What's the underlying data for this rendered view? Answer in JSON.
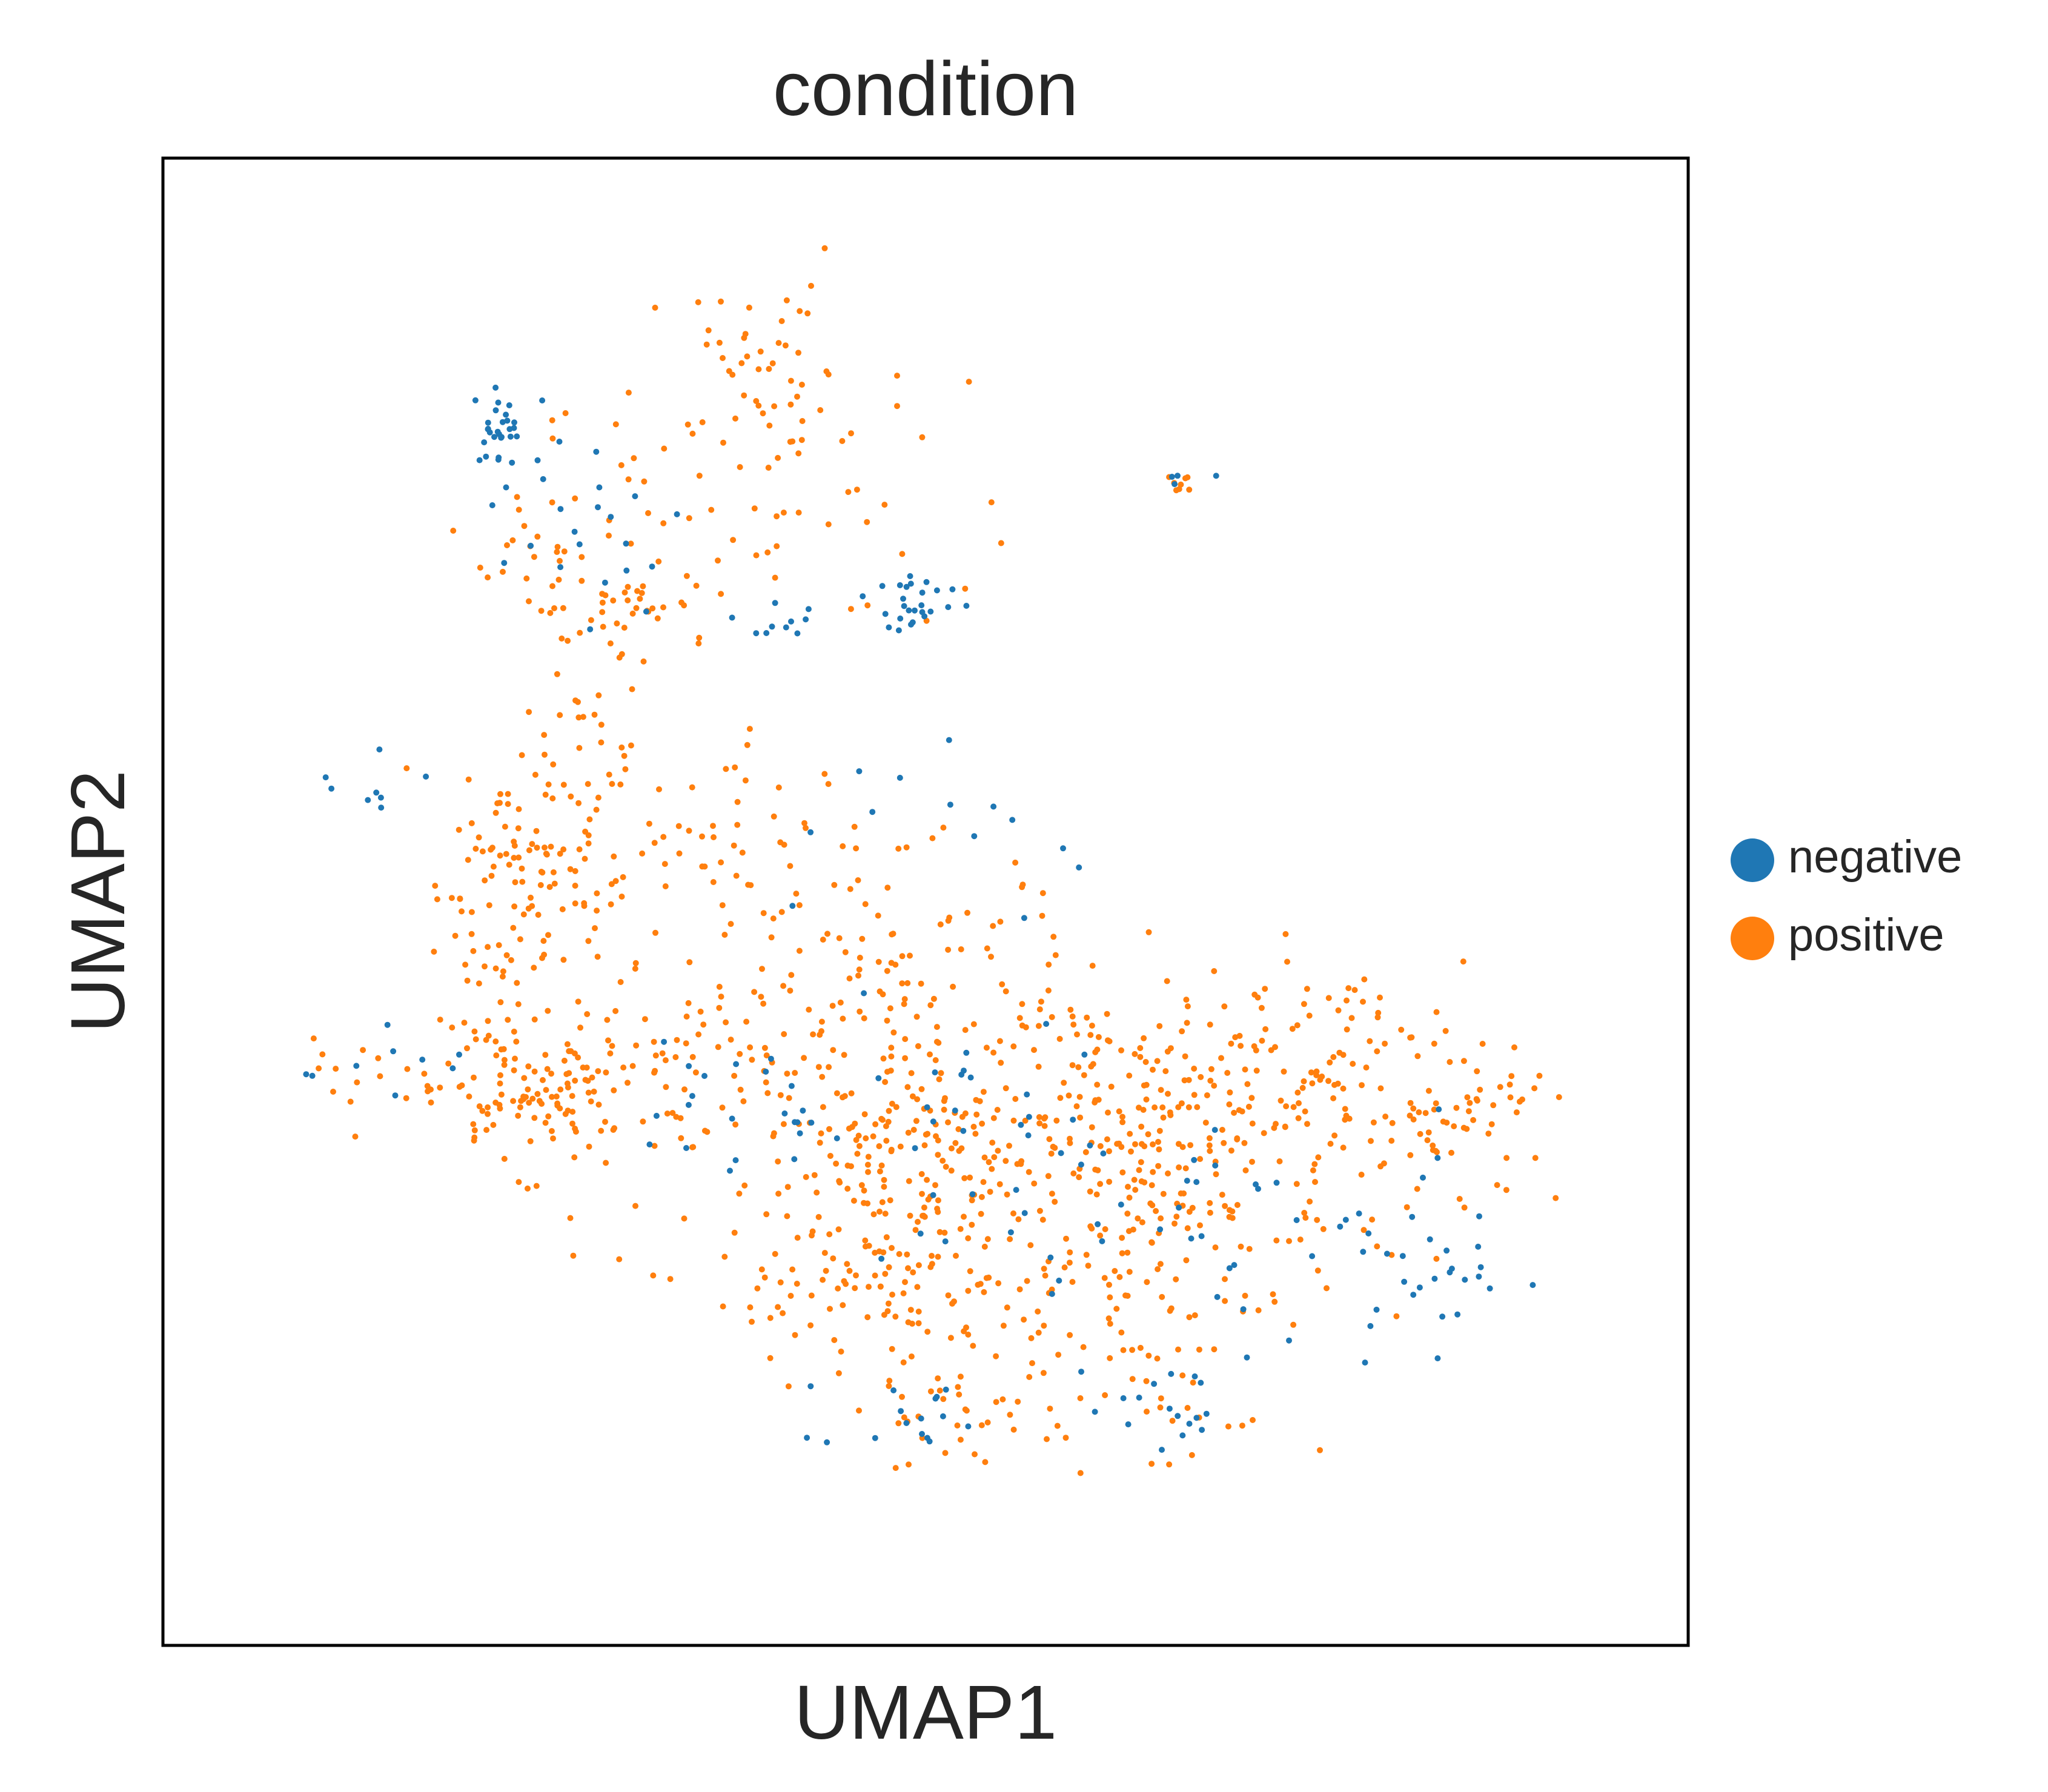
{
  "chart_data": {
    "type": "scatter",
    "title": "condition",
    "xlabel": "UMAP1",
    "ylabel": "UMAP2",
    "xlim": [
      0,
      100
    ],
    "ylim": [
      0,
      100
    ],
    "grid": false,
    "ticks": false,
    "legend_position": "right",
    "series": [
      {
        "name": "negative",
        "color": "#1f77b4",
        "clusters": [
          {
            "cx": 18.8,
            "cy": 86.0,
            "sx": 1.8,
            "sy": 1.5,
            "n": 30
          },
          {
            "cx": 24.5,
            "cy": 78.5,
            "sx": 3.5,
            "sy": 3.5,
            "n": 22
          },
          {
            "cx": 49.0,
            "cy": 73.0,
            "sx": 1.8,
            "sy": 1.2,
            "n": 26
          },
          {
            "cx": 40.5,
            "cy": 71.5,
            "sx": 1.6,
            "sy": 0.8,
            "n": 10
          },
          {
            "cx": 69.5,
            "cy": 82.5,
            "sx": 1.5,
            "sy": 0.6,
            "n": 4
          },
          {
            "cx": 9.0,
            "cy": 59.0,
            "sx": 2.8,
            "sy": 1.5,
            "n": 8
          },
          {
            "cx": 8.5,
            "cy": 37.5,
            "sx": 3.5,
            "sy": 1.2,
            "n": 9
          },
          {
            "cx": 42.0,
            "cy": 35.0,
            "sx": 7.0,
            "sy": 3.5,
            "n": 28
          },
          {
            "cx": 58.0,
            "cy": 30.0,
            "sx": 9.0,
            "sy": 5.0,
            "n": 34
          },
          {
            "cx": 78.0,
            "cy": 22.0,
            "sx": 7.0,
            "sy": 5.0,
            "n": 30
          },
          {
            "cx": 89.0,
            "cy": 21.0,
            "sx": 2.5,
            "sy": 2.0,
            "n": 20
          },
          {
            "cx": 48.0,
            "cy": 10.5,
            "sx": 3.5,
            "sy": 1.5,
            "n": 16
          },
          {
            "cx": 68.0,
            "cy": 11.0,
            "sx": 5.0,
            "sy": 2.0,
            "n": 16
          },
          {
            "cx": 52.0,
            "cy": 55.0,
            "sx": 8.0,
            "sy": 5.0,
            "n": 14
          }
        ]
      },
      {
        "name": "positive",
        "color": "#ff7f0e",
        "clusters": [
          {
            "cx": 38.0,
            "cy": 91.0,
            "sx": 4.5,
            "sy": 3.0,
            "n": 40
          },
          {
            "cx": 37.0,
            "cy": 81.0,
            "sx": 8.0,
            "sy": 4.5,
            "n": 60
          },
          {
            "cx": 22.5,
            "cy": 76.0,
            "sx": 3.0,
            "sy": 2.5,
            "n": 30
          },
          {
            "cx": 29.5,
            "cy": 72.5,
            "sx": 2.5,
            "sy": 2.0,
            "n": 30
          },
          {
            "cx": 25.0,
            "cy": 66.0,
            "sx": 2.0,
            "sy": 3.5,
            "n": 20
          },
          {
            "cx": 69.0,
            "cy": 82.0,
            "sx": 0.6,
            "sy": 0.4,
            "n": 8
          },
          {
            "cx": 19.5,
            "cy": 52.0,
            "sx": 3.0,
            "sy": 5.0,
            "n": 100
          },
          {
            "cx": 29.0,
            "cy": 55.0,
            "sx": 7.0,
            "sy": 3.5,
            "n": 60
          },
          {
            "cx": 20.0,
            "cy": 36.0,
            "sx": 5.0,
            "sy": 3.0,
            "n": 120
          },
          {
            "cx": 32.0,
            "cy": 38.0,
            "sx": 7.0,
            "sy": 5.0,
            "n": 90
          },
          {
            "cx": 47.0,
            "cy": 43.0,
            "sx": 8.0,
            "sy": 6.0,
            "n": 120
          },
          {
            "cx": 50.0,
            "cy": 30.0,
            "sx": 8.0,
            "sy": 5.0,
            "n": 180
          },
          {
            "cx": 64.0,
            "cy": 34.0,
            "sx": 8.0,
            "sy": 5.0,
            "n": 160
          },
          {
            "cx": 78.0,
            "cy": 37.0,
            "sx": 6.5,
            "sy": 4.0,
            "n": 120
          },
          {
            "cx": 90.0,
            "cy": 34.0,
            "sx": 3.5,
            "sy": 3.0,
            "n": 50
          },
          {
            "cx": 72.0,
            "cy": 26.0,
            "sx": 7.0,
            "sy": 4.0,
            "n": 90
          },
          {
            "cx": 45.0,
            "cy": 20.0,
            "sx": 6.0,
            "sy": 3.5,
            "n": 80
          },
          {
            "cx": 60.0,
            "cy": 18.0,
            "sx": 7.0,
            "sy": 4.0,
            "n": 70
          },
          {
            "cx": 52.0,
            "cy": 10.5,
            "sx": 4.0,
            "sy": 2.0,
            "n": 30
          },
          {
            "cx": 70.0,
            "cy": 11.0,
            "sx": 5.0,
            "sy": 2.0,
            "n": 20
          },
          {
            "cx": 8.0,
            "cy": 37.0,
            "sx": 3.0,
            "sy": 1.5,
            "n": 10
          }
        ]
      }
    ]
  }
}
